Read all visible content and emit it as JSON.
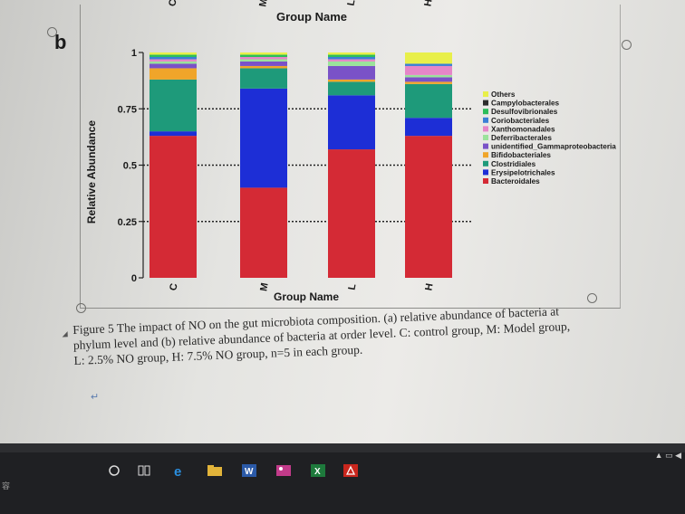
{
  "panel_label": "b",
  "chart_data": {
    "type": "bar",
    "stacked": true,
    "title": "Group Name",
    "xlabel": "Group Name",
    "ylabel": "Relative Abundance",
    "ylim": [
      0,
      1
    ],
    "yticks": [
      "0",
      "0.25",
      "0.5",
      "0.75",
      "1"
    ],
    "categories": [
      "C",
      "M",
      "L",
      "H"
    ],
    "legend_position": "right",
    "series": [
      {
        "name": "Bacteroidales",
        "color": "#d42a35",
        "values": [
          0.63,
          0.4,
          0.57,
          0.63
        ]
      },
      {
        "name": "Erysipelotrichales",
        "color": "#1d2ed6",
        "values": [
          0.02,
          0.44,
          0.24,
          0.08
        ]
      },
      {
        "name": "Clostridiales",
        "color": "#1e9a7a",
        "values": [
          0.23,
          0.09,
          0.06,
          0.15
        ]
      },
      {
        "name": "Bifidobacteriales",
        "color": "#f0a52a",
        "values": [
          0.05,
          0.01,
          0.01,
          0.01
        ]
      },
      {
        "name": "unidentified_Gammaproteobacteria",
        "color": "#7a52c7",
        "values": [
          0.02,
          0.02,
          0.06,
          0.02
        ]
      },
      {
        "name": "Deferribacterales",
        "color": "#9be29b",
        "values": [
          0.01,
          0.01,
          0.02,
          0.01
        ]
      },
      {
        "name": "Xanthomonadales",
        "color": "#e586c8",
        "values": [
          0.01,
          0.01,
          0.01,
          0.04
        ]
      },
      {
        "name": "Coriobacteriales",
        "color": "#3a7fd6",
        "values": [
          0.01,
          0.0,
          0.01,
          0.01
        ]
      },
      {
        "name": "Desulfovibrionales",
        "color": "#2bbd5a",
        "values": [
          0.01,
          0.01,
          0.01,
          0.0
        ]
      },
      {
        "name": "Campylobacterales",
        "color": "#2c2c2c",
        "values": [
          0.0,
          0.0,
          0.0,
          0.0
        ]
      },
      {
        "name": "Others",
        "color": "#e8ef4a",
        "values": [
          0.01,
          0.01,
          0.01,
          0.05
        ]
      }
    ],
    "legend_order": [
      "Others",
      "Campylobacterales",
      "Desulfovibrionales",
      "Coriobacteriales",
      "Xanthomonadales",
      "Deferribacterales",
      "unidentified_Gammaproteobacteria",
      "Bifidobacteriales",
      "Clostridiales",
      "Erysipelotrichales",
      "Bacteroidales"
    ]
  },
  "caption": {
    "label": "Figure 5",
    "text": "The impact of NO on the gut microbiota composition. (a) relative abundance of bacteria at phylum level and (b) relative abundance of bacteria at order level. C: control group, M: Model group, L: 2.5% NO group, H: 7.5% NO group, n=5 in each group."
  },
  "taskbar": {
    "left_text": "容"
  }
}
